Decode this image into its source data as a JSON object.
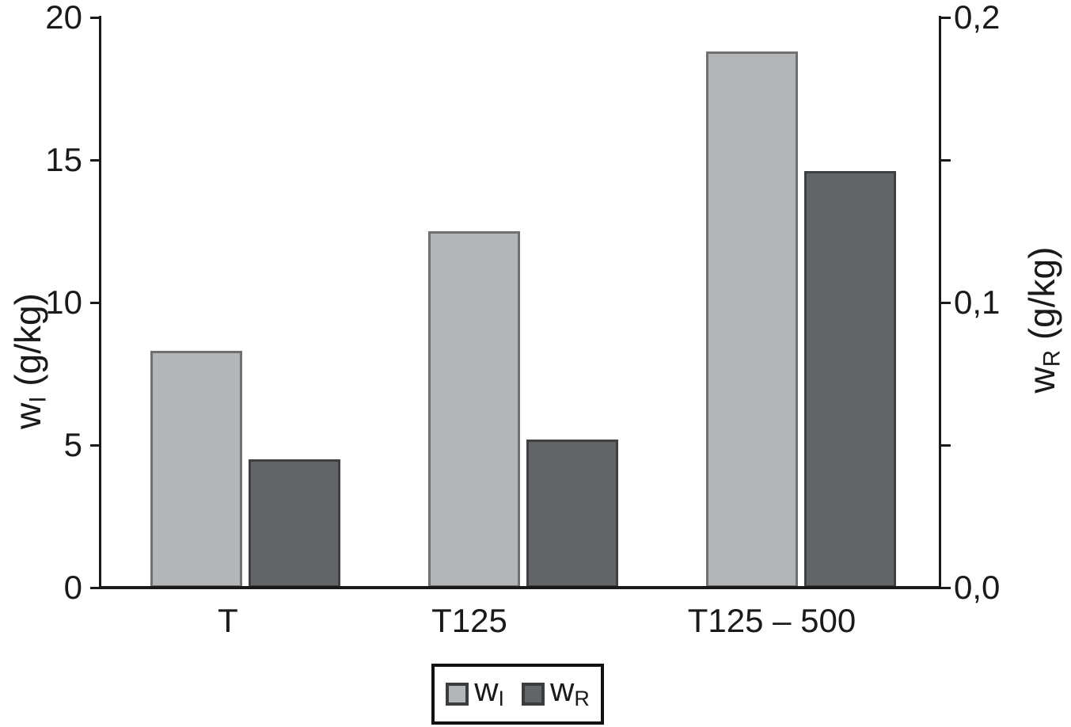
{
  "figure": {
    "background": "#ffffff",
    "axis_color": "#1a1a1a",
    "text_color": "#1a1a1a"
  },
  "chart_data": {
    "type": "bar",
    "title": "",
    "categories": [
      "T",
      "T125",
      "T125 – 500"
    ],
    "series": [
      {
        "name": "wI",
        "legend_base": "w",
        "legend_sub": "I",
        "axis": "left",
        "fill": "#b3b5b7",
        "stroke": "#6e7072",
        "values": [
          8.3,
          12.5,
          18.8
        ]
      },
      {
        "name": "wR",
        "legend_base": "w",
        "legend_sub": "R",
        "axis": "right",
        "fill": "#626467",
        "stroke": "#3e4042",
        "values": [
          0.045,
          0.052,
          0.146
        ]
      }
    ],
    "left_axis": {
      "title_base": "w",
      "title_sub": "I",
      "title_unit": " (g/kg)",
      "range": [
        0,
        20
      ],
      "ticks": [
        {
          "value": 0,
          "label": "0"
        },
        {
          "value": 5,
          "label": "5"
        },
        {
          "value": 10,
          "label": "10"
        },
        {
          "value": 15,
          "label": "15"
        },
        {
          "value": 20,
          "label": "20"
        }
      ]
    },
    "right_axis": {
      "title_base": "w",
      "title_sub": "R",
      "title_unit": " (g/kg)",
      "range": [
        0,
        0.2
      ],
      "ticks": [
        {
          "value": 0,
          "label": "0,0"
        },
        {
          "value": 0.05,
          "label": ""
        },
        {
          "value": 0.1,
          "label": "0,1"
        },
        {
          "value": 0.15,
          "label": ""
        },
        {
          "value": 0.2,
          "label": "0,2"
        }
      ]
    },
    "legend_position": "bottom",
    "grid": false
  }
}
